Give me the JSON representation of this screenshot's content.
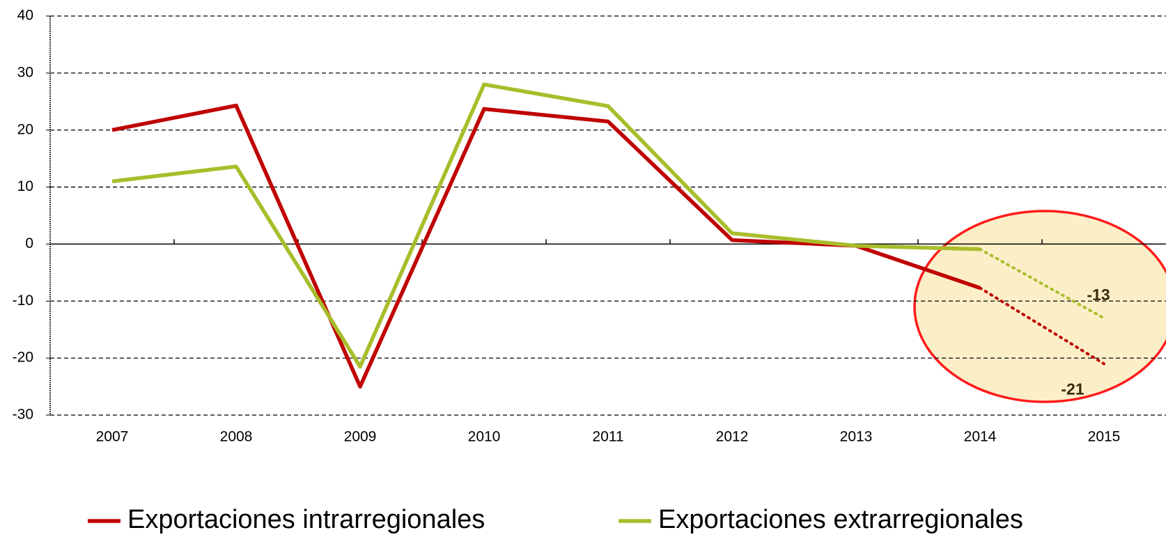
{
  "chart_data": {
    "type": "line",
    "categories": [
      "2007",
      "2008",
      "2009",
      "2010",
      "2011",
      "2012",
      "2013",
      "2014",
      "2015"
    ],
    "series": [
      {
        "name": "Exportaciones intrarregionales",
        "color": "#c00000",
        "values": [
          20,
          24.3,
          -25,
          23.7,
          21.5,
          0.7,
          -0.3,
          -7.7,
          -21
        ]
      },
      {
        "name": "Exportaciones extrarregionales",
        "color": "#a9bd2b",
        "values": [
          11,
          13.6,
          -21.5,
          28,
          24.2,
          1.9,
          -0.3,
          -0.9,
          -13
        ]
      }
    ],
    "dotted_from_index": 7,
    "data_labels_on_index": 8,
    "ylim": [
      -30,
      40
    ],
    "yticks": [
      -30,
      -20,
      -10,
      0,
      10,
      20,
      30,
      40
    ],
    "grid": true
  }
}
